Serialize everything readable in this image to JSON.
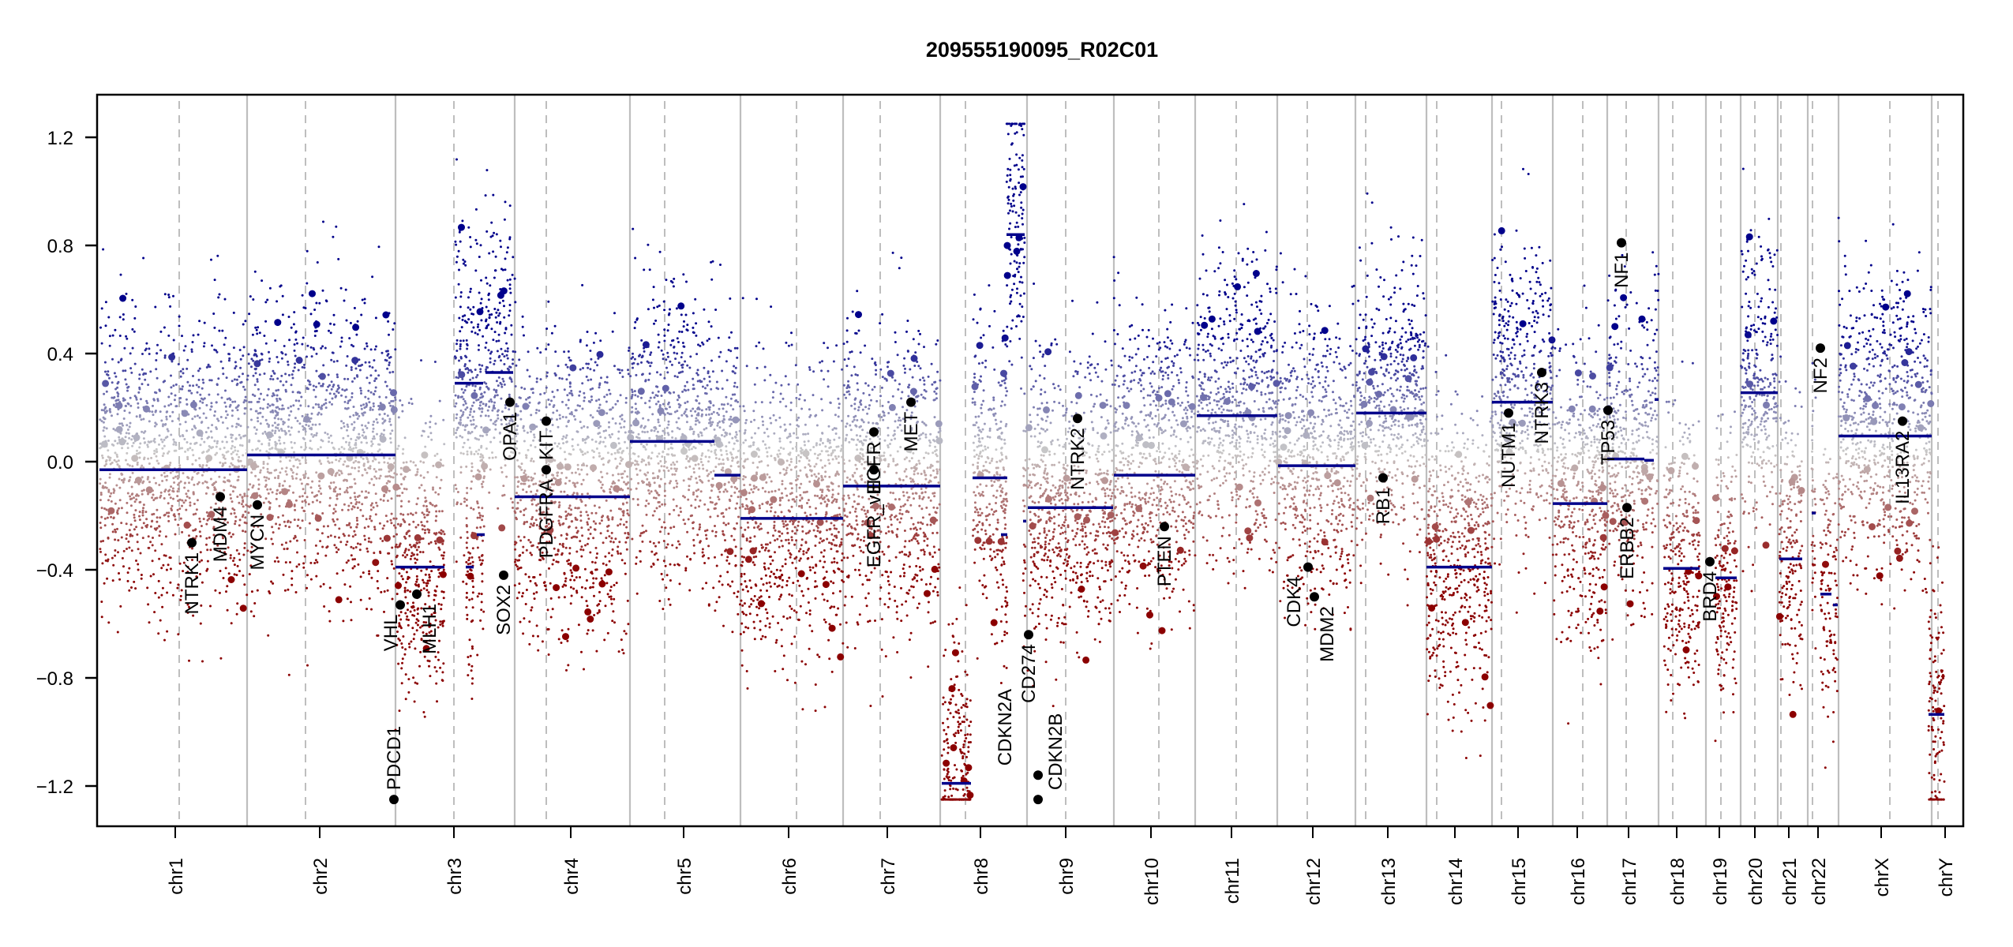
{
  "chart_data": {
    "type": "scatter",
    "title": "209555190095_R02C01",
    "xlabel": "",
    "ylabel": "",
    "ylim": [
      -1.3,
      1.35
    ],
    "yticks": [
      1.2,
      0.8,
      0.4,
      0.0,
      -0.4,
      -0.8,
      -1.2
    ],
    "ytick_labels": [
      "1.2",
      "0.8",
      "0.4",
      "0.0",
      "−0.4",
      "−0.8",
      "−1.2"
    ],
    "grid": false,
    "colors": {
      "segment": "#00008B",
      "gain_point": "#00008B",
      "loss_point": "#8B0000",
      "neutral_point": "#C8C8C8",
      "chrom_boundary": "#BEBEBE",
      "centromere": "#BEBEBE",
      "gene_marker": "#000000"
    },
    "chromosomes": [
      {
        "name": "chr1",
        "label": "chr1"
      },
      {
        "name": "chr2",
        "label": "chr2"
      },
      {
        "name": "chr3",
        "label": "chr3"
      },
      {
        "name": "chr4",
        "label": "chr4"
      },
      {
        "name": "chr5",
        "label": "chr5"
      },
      {
        "name": "chr6",
        "label": "chr6"
      },
      {
        "name": "chr7",
        "label": "chr7"
      },
      {
        "name": "chr8",
        "label": "chr8"
      },
      {
        "name": "chr9",
        "label": "chr9"
      },
      {
        "name": "chr10",
        "label": "chr10"
      },
      {
        "name": "chr11",
        "label": "chr11"
      },
      {
        "name": "chr12",
        "label": "chr12"
      },
      {
        "name": "chr13",
        "label": "chr13"
      },
      {
        "name": "chr14",
        "label": "chr14"
      },
      {
        "name": "chr15",
        "label": "chr15"
      },
      {
        "name": "chr16",
        "label": "chr16"
      },
      {
        "name": "chr17",
        "label": "chr17"
      },
      {
        "name": "chr18",
        "label": "chr18"
      },
      {
        "name": "chr19",
        "label": "chr19"
      },
      {
        "name": "chr20",
        "label": "chr20"
      },
      {
        "name": "chr21",
        "label": "chr21"
      },
      {
        "name": "chr22",
        "label": "chr22"
      },
      {
        "name": "chrX",
        "label": "chrX"
      },
      {
        "name": "chrY",
        "label": "chrY"
      }
    ],
    "segments": [
      {
        "chr": "chr1",
        "value": -0.03
      },
      {
        "chr": "chr2",
        "value": 0.025
      },
      {
        "chr": "chr3",
        "value": -0.39
      },
      {
        "chr": "chr3",
        "value": -0.39
      },
      {
        "chr": "chr3",
        "value": 0.29
      },
      {
        "chr": "chr3",
        "value": -0.27
      },
      {
        "chr": "chr3",
        "value": 0.33
      },
      {
        "chr": "chr4",
        "value": -0.13
      },
      {
        "chr": "chr5",
        "value": 0.075
      },
      {
        "chr": "chr5",
        "value": -0.05
      },
      {
        "chr": "chr6",
        "value": -0.21
      },
      {
        "chr": "chr7",
        "value": -0.09
      },
      {
        "chr": "chr8",
        "value": -1.19
      },
      {
        "chr": "chr8",
        "value": -0.06
      },
      {
        "chr": "chr8",
        "value": -0.27
      },
      {
        "chr": "chr8",
        "value": 0.84
      },
      {
        "chr": "chr9",
        "value": -0.22
      },
      {
        "chr": "chr9",
        "value": -0.17
      },
      {
        "chr": "chr10",
        "value": -0.05
      },
      {
        "chr": "chr11",
        "value": 0.17
      },
      {
        "chr": "chr12",
        "value": -0.015
      },
      {
        "chr": "chr13",
        "value": 0.18
      },
      {
        "chr": "chr14",
        "value": -0.39
      },
      {
        "chr": "chr15",
        "value": 0.22
      },
      {
        "chr": "chr16",
        "value": -0.155
      },
      {
        "chr": "chr17",
        "value": 0.01
      },
      {
        "chr": "chr17",
        "value": 0.005
      },
      {
        "chr": "chr17",
        "value": 0.23
      },
      {
        "chr": "chr18",
        "value": -0.395
      },
      {
        "chr": "chr19",
        "value": -0.43
      },
      {
        "chr": "chr20",
        "value": 0.255
      },
      {
        "chr": "chr21",
        "value": -0.36
      },
      {
        "chr": "chr22",
        "value": -0.19
      },
      {
        "chr": "chr22",
        "value": -0.49
      },
      {
        "chr": "chr22",
        "value": -0.53
      },
      {
        "chr": "chrX",
        "value": 0.095
      },
      {
        "chr": "chrY",
        "value": -0.935
      }
    ],
    "genes": [
      {
        "name": "NTRK1",
        "chr": "chr1",
        "value": -0.3
      },
      {
        "name": "MDM4",
        "chr": "chr1",
        "value": -0.13
      },
      {
        "name": "MYCN",
        "chr": "chr2",
        "value": -0.16
      },
      {
        "name": "PDCD1",
        "chr": "chr2",
        "value": -1.25
      },
      {
        "name": "VHL",
        "chr": "chr3",
        "value": -0.53
      },
      {
        "name": "MLH1",
        "chr": "chr3",
        "value": -0.49
      },
      {
        "name": "SOX2",
        "chr": "chr3",
        "value": -0.42
      },
      {
        "name": "OPA1",
        "chr": "chr3",
        "value": 0.22
      },
      {
        "name": "PDGFRA",
        "chr": "chr4",
        "value": -0.03
      },
      {
        "name": "KIT",
        "chr": "chr4",
        "value": 0.15
      },
      {
        "name": "EGFR_vIII",
        "chr": "chr7",
        "value": -0.03
      },
      {
        "name": "EGFR",
        "chr": "chr7",
        "value": 0.11
      },
      {
        "name": "MET",
        "chr": "chr7",
        "value": 0.22
      },
      {
        "name": "CD274",
        "chr": "chr9",
        "value": -0.64
      },
      {
        "name": "CDKN2A",
        "chr": "chr9",
        "value": -1.16
      },
      {
        "name": "CDKN2B",
        "chr": "chr9",
        "value": -1.25
      },
      {
        "name": "NTRK2",
        "chr": "chr9",
        "value": 0.16
      },
      {
        "name": "PTEN",
        "chr": "chr10",
        "value": -0.24
      },
      {
        "name": "CDK4",
        "chr": "chr12",
        "value": -0.39
      },
      {
        "name": "MDM2",
        "chr": "chr12",
        "value": -0.5
      },
      {
        "name": "RB1",
        "chr": "chr13",
        "value": -0.06
      },
      {
        "name": "NUTM1",
        "chr": "chr15",
        "value": 0.18
      },
      {
        "name": "NTRK3",
        "chr": "chr15",
        "value": 0.33
      },
      {
        "name": "TP53",
        "chr": "chr17",
        "value": 0.19
      },
      {
        "name": "NF1",
        "chr": "chr17",
        "value": 0.81
      },
      {
        "name": "ERBB2",
        "chr": "chr17",
        "value": -0.17
      },
      {
        "name": "BRD4",
        "chr": "chr19",
        "value": -0.37
      },
      {
        "name": "NF2",
        "chr": "chr22",
        "value": 0.42
      },
      {
        "name": "IL13RA2",
        "chr": "chrX",
        "value": 0.15
      }
    ]
  }
}
